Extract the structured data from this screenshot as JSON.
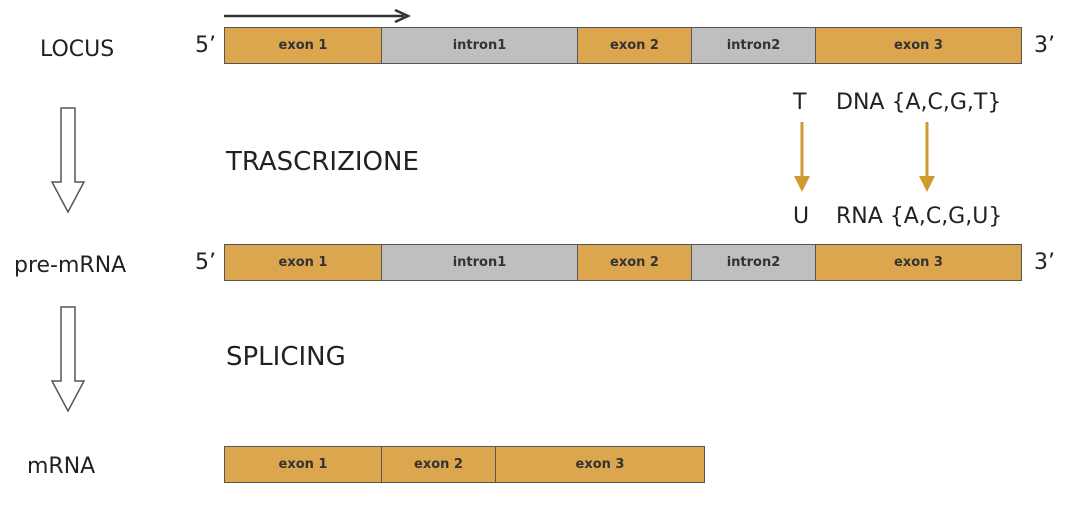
{
  "colors": {
    "exon": "#dba64d",
    "intron": "#bfbfbf",
    "transform_arrow": "#cf9a2f",
    "direction_arrow": "#333333"
  },
  "rows": {
    "locus": {
      "label": "LOCUS",
      "five_prime": "5’",
      "three_prime": "3’",
      "segments": [
        {
          "type": "exon",
          "label": "exon 1"
        },
        {
          "type": "intron",
          "label": "intron1"
        },
        {
          "type": "exon",
          "label": "exon 2"
        },
        {
          "type": "intron",
          "label": "intron2"
        },
        {
          "type": "exon",
          "label": "exon 3"
        }
      ]
    },
    "pre_mrna": {
      "label": "pre-mRNA",
      "five_prime": "5’",
      "three_prime": "3’",
      "segments": [
        {
          "type": "exon",
          "label": "exon 1"
        },
        {
          "type": "intron",
          "label": "intron1"
        },
        {
          "type": "exon",
          "label": "exon 2"
        },
        {
          "type": "intron",
          "label": "intron2"
        },
        {
          "type": "exon",
          "label": "exon 3"
        }
      ]
    },
    "mrna": {
      "label": "mRNA",
      "segments": [
        {
          "type": "exon",
          "label": "exon 1"
        },
        {
          "type": "exon",
          "label": "exon 2"
        },
        {
          "type": "exon",
          "label": "exon 3"
        }
      ]
    }
  },
  "steps": {
    "transcription": "TRASCRIZIONE",
    "splicing": "SPLICING"
  },
  "nucleotides": {
    "dna_base": "T",
    "dna_alphabet": "DNA {A,C,G,T}",
    "rna_base": "U",
    "rna_alphabet": "RNA {A,C,G,U}"
  }
}
